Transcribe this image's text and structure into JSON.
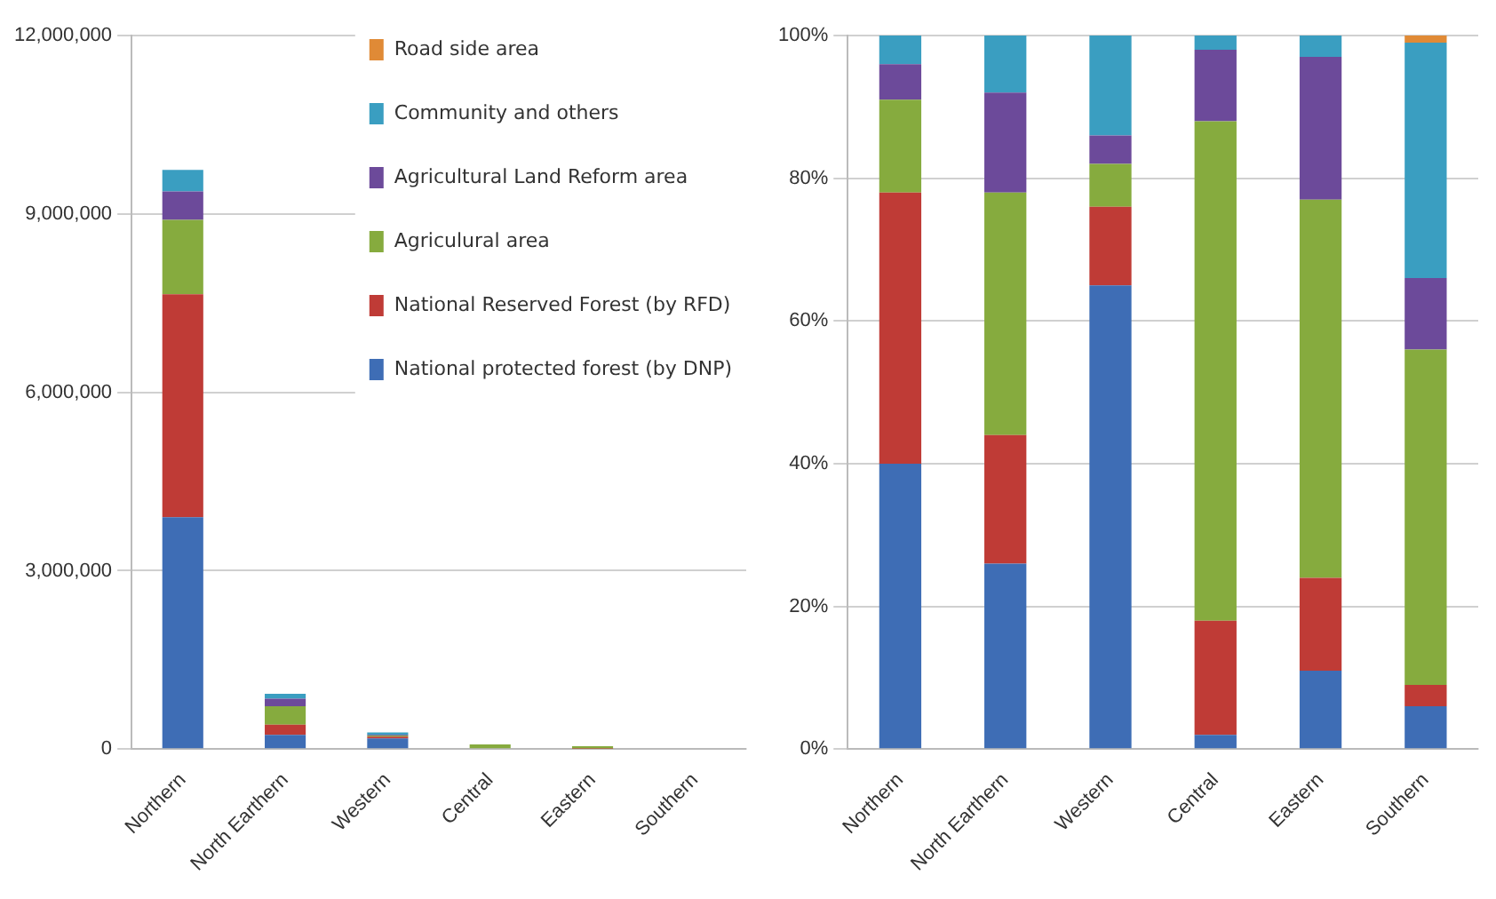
{
  "chart_data": [
    {
      "type": "bar",
      "stacked": true,
      "categories": [
        "Northern",
        "North Earthern",
        "Western",
        "Central",
        "Eastern",
        "Southern"
      ],
      "ylim": [
        0,
        12000000
      ],
      "yticks": [
        0,
        {
          "value": 3000000,
          "label": "3,000,000"
        },
        {
          "value": 6000000,
          "label": "6,000,000"
        },
        {
          "value": 9000000,
          "label": "9,000,000"
        },
        {
          "value": 12000000,
          "label": "12,000,000"
        }
      ],
      "grid": "y",
      "legend": "top right",
      "series": [
        {
          "name": "National protected forest (by DNP)",
          "color": "#3e6db5",
          "values": [
            3900000,
            240000,
            180000,
            0,
            null,
            0
          ]
        },
        {
          "name": "National Reserved Forest (by RFD)",
          "color": "#bf3b36",
          "values": [
            3750000,
            170000,
            30000,
            null,
            10000,
            0
          ]
        },
        {
          "name": "Agriculural area",
          "color": "#86ab3e",
          "values": [
            1250000,
            310000,
            20000,
            80000,
            40000,
            0
          ]
        },
        {
          "name": "Agricultural Land Reform area",
          "color": "#6c4a9a",
          "values": [
            480000,
            130000,
            10000,
            null,
            null,
            0
          ]
        },
        {
          "name": "Community and others",
          "color": "#3a9ec1",
          "values": [
            360000,
            80000,
            40000,
            0,
            0,
            0
          ]
        },
        {
          "name": "Road side area",
          "color": "#e08a36",
          "values": [
            0,
            0,
            0,
            0,
            0,
            0
          ]
        }
      ]
    },
    {
      "type": "bar",
      "stacked": true,
      "categories": [
        "Northern",
        "North Earthern",
        "Western",
        "Central",
        "Eastern",
        "Southern"
      ],
      "ylim": [
        0,
        100
      ],
      "yticks": [
        {
          "value": 0,
          "label": "0%"
        },
        {
          "value": 20,
          "label": "20%"
        },
        {
          "value": 40,
          "label": "40%"
        },
        {
          "value": 60,
          "label": "60%"
        },
        {
          "value": 80,
          "label": "80%"
        },
        {
          "value": 100,
          "label": "100%"
        }
      ],
      "grid": "y",
      "series": [
        {
          "color": "#3e6db5",
          "values": [
            40,
            26,
            65,
            2,
            11,
            6
          ]
        },
        {
          "color": "#bf3b36",
          "values": [
            38,
            18,
            11,
            16,
            13,
            3
          ]
        },
        {
          "color": "#86ab3e",
          "values": [
            13,
            34,
            6,
            70,
            53,
            47
          ]
        },
        {
          "color": "#6c4a9a",
          "values": [
            5,
            14,
            4,
            10,
            20,
            10
          ]
        },
        {
          "color": "#3a9ec1",
          "values": [
            4,
            8,
            14,
            2,
            3,
            33
          ]
        },
        {
          "color": "#e08a36",
          "values": [
            0,
            0,
            0,
            0,
            0,
            1
          ]
        }
      ]
    }
  ]
}
